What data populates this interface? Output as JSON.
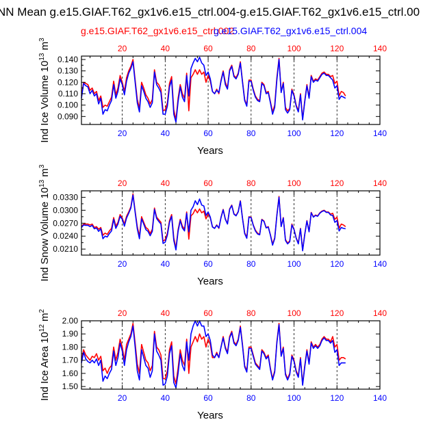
{
  "title": "NN Mean g.e15.GIAF.T62_gx1v6.e15_ctrl.004-g.e15.GIAF.T62_gx1v6.e15_ctrl.00",
  "legend": {
    "red": "g.e15.GIAF.T62_gx1v6.e15_ctrl.002",
    "blue": "g.e15.GIAF.T62_gx1v6.e15_ctrl.004"
  },
  "colors": {
    "red": "#ff0000",
    "blue": "#0000ff",
    "axis": "#000000",
    "grid": "#000000"
  },
  "chart_data": [
    {
      "type": "line",
      "ylabel": "Ind Ice Volume 10^13 m^3",
      "ylabel_main": "Ind Ice Volume 10",
      "ylabel_exp": "13",
      "ylabel_unit": " m",
      "ylabel_unit_exp": "3",
      "xlabel": "Years",
      "xlim": [
        1,
        140
      ],
      "ylim": [
        0.083,
        0.143
      ],
      "yticks": [
        0.09,
        0.1,
        0.11,
        0.12,
        0.13,
        0.14
      ],
      "ytick_labels": [
        "0.090",
        "0.100",
        "0.110",
        "0.120",
        "0.130",
        "0.140"
      ],
      "xticks": [
        20,
        40,
        60,
        80,
        100,
        120,
        140
      ],
      "xtick_labels": [
        "20",
        "40",
        "60",
        "80",
        "100",
        "120",
        "140"
      ],
      "grid_x": [
        20,
        40,
        60,
        80,
        100,
        120
      ],
      "series": [
        {
          "name": "g.e15.GIAF.T62_gx1v6.e15_ctrl.002",
          "color": "#ff0000",
          "values": [
            0.108,
            0.12,
            0.119,
            0.118,
            0.113,
            0.115,
            0.11,
            0.112,
            0.104,
            0.108,
            0.098,
            0.1,
            0.099,
            0.103,
            0.107,
            0.121,
            0.109,
            0.115,
            0.126,
            0.12,
            0.112,
            0.124,
            0.13,
            0.134,
            0.14,
            0.122,
            0.105,
            0.097,
            0.12,
            0.115,
            0.109,
            0.106,
            0.101,
            0.105,
            0.131,
            0.12,
            0.118,
            0.114,
            0.095,
            0.096,
            0.102,
            0.119,
            0.125,
            0.096,
            0.087,
            0.106,
            0.118,
            0.11,
            0.106,
            0.128,
            0.095,
            0.124,
            0.127,
            0.131,
            0.127,
            0.131,
            0.127,
            0.129,
            0.12,
            0.126,
            0.121,
            0.112,
            0.11,
            0.114,
            0.11,
            0.122,
            0.13,
            0.12,
            0.115,
            0.131,
            0.135,
            0.126,
            0.124,
            0.128,
            0.138,
            0.121,
            0.105,
            0.1,
            0.122,
            0.122,
            0.114,
            0.108,
            0.105,
            0.104,
            0.12,
            0.118,
            0.111,
            0.112,
            0.103,
            0.094,
            0.1,
            0.124,
            0.141,
            0.112,
            0.12,
            0.098,
            0.095,
            0.097,
            0.114,
            0.109,
            0.1,
            0.095,
            0.11,
            0.088,
            0.104,
            0.118,
            0.107,
            0.126,
            0.121,
            0.123,
            0.122,
            0.125,
            0.128,
            0.129,
            0.127,
            0.127,
            0.125,
            0.126,
            0.119,
            0.121,
            0.108,
            0.112,
            0.111,
            0.108
          ]
        },
        {
          "name": "g.e15.GIAF.T62_gx1v6.e15_ctrl.004",
          "color": "#0000ff",
          "values": [
            0.106,
            0.119,
            0.117,
            0.116,
            0.11,
            0.113,
            0.108,
            0.11,
            0.101,
            0.106,
            0.092,
            0.096,
            0.095,
            0.1,
            0.104,
            0.118,
            0.106,
            0.112,
            0.123,
            0.118,
            0.109,
            0.121,
            0.128,
            0.132,
            0.138,
            0.12,
            0.102,
            0.094,
            0.117,
            0.112,
            0.106,
            0.103,
            0.098,
            0.102,
            0.129,
            0.118,
            0.115,
            0.111,
            0.092,
            0.092,
            0.099,
            0.116,
            0.122,
            0.092,
            0.085,
            0.103,
            0.116,
            0.107,
            0.103,
            0.126,
            0.108,
            0.132,
            0.137,
            0.141,
            0.138,
            0.142,
            0.137,
            0.135,
            0.126,
            0.129,
            0.123,
            0.112,
            0.11,
            0.113,
            0.111,
            0.121,
            0.129,
            0.118,
            0.114,
            0.13,
            0.134,
            0.125,
            0.123,
            0.127,
            0.137,
            0.12,
            0.104,
            0.099,
            0.121,
            0.121,
            0.113,
            0.107,
            0.104,
            0.103,
            0.119,
            0.117,
            0.11,
            0.111,
            0.102,
            0.092,
            0.098,
            0.122,
            0.14,
            0.111,
            0.119,
            0.096,
            0.093,
            0.096,
            0.113,
            0.108,
            0.099,
            0.094,
            0.109,
            0.087,
            0.103,
            0.117,
            0.106,
            0.125,
            0.12,
            0.122,
            0.121,
            0.124,
            0.127,
            0.128,
            0.126,
            0.126,
            0.124,
            0.122,
            0.115,
            0.117,
            0.105,
            0.108,
            0.107,
            0.106
          ]
        }
      ]
    },
    {
      "type": "line",
      "ylabel": "Ind Snow Volume 10^13 m^3",
      "ylabel_main": "Ind Snow Volume 10",
      "ylabel_exp": "13",
      "ylabel_unit": " m",
      "ylabel_unit_exp": "3",
      "xlabel": "Years",
      "xlim": [
        1,
        140
      ],
      "ylim": [
        0.0196,
        0.0345
      ],
      "yticks": [
        0.021,
        0.024,
        0.027,
        0.03,
        0.033
      ],
      "ytick_labels": [
        "0.0210",
        "0.0240",
        "0.0270",
        "0.0300",
        "0.0330"
      ],
      "xticks": [
        20,
        40,
        60,
        80,
        100,
        120,
        140
      ],
      "xtick_labels": [
        "20",
        "40",
        "60",
        "80",
        "100",
        "120",
        "140"
      ],
      "grid_x": [
        20,
        40,
        60,
        80,
        100,
        120
      ],
      "series": [
        {
          "name": "g.e15.GIAF.T62_gx1v6.e15_ctrl.002",
          "color": "#ff0000",
          "values": [
            0.0262,
            0.0268,
            0.0268,
            0.0268,
            0.0266,
            0.0268,
            0.026,
            0.0262,
            0.0256,
            0.026,
            0.0242,
            0.0247,
            0.0244,
            0.0252,
            0.0258,
            0.0283,
            0.0263,
            0.0272,
            0.029,
            0.0282,
            0.0268,
            0.0286,
            0.0296,
            0.0308,
            0.0338,
            0.0298,
            0.0262,
            0.024,
            0.0285,
            0.0272,
            0.026,
            0.0256,
            0.0246,
            0.0256,
            0.0305,
            0.0284,
            0.0278,
            0.0272,
            0.0228,
            0.0232,
            0.0247,
            0.0276,
            0.029,
            0.0236,
            0.0212,
            0.0255,
            0.0279,
            0.0263,
            0.0256,
            0.0296,
            0.0233,
            0.0287,
            0.0292,
            0.0302,
            0.0294,
            0.0303,
            0.0294,
            0.0298,
            0.028,
            0.0292,
            0.0282,
            0.0262,
            0.0258,
            0.0266,
            0.0258,
            0.0284,
            0.0302,
            0.028,
            0.0269,
            0.0303,
            0.0312,
            0.0292,
            0.0288,
            0.0297,
            0.0322,
            0.0282,
            0.0248,
            0.0237,
            0.0285,
            0.0284,
            0.0266,
            0.0254,
            0.0247,
            0.0244,
            0.0279,
            0.0275,
            0.026,
            0.0262,
            0.0243,
            0.0222,
            0.0236,
            0.0289,
            0.0332,
            0.0263,
            0.0283,
            0.0232,
            0.0224,
            0.0229,
            0.0268,
            0.0256,
            0.0236,
            0.0224,
            0.0258,
            0.0208,
            0.0245,
            0.0276,
            0.0251,
            0.0295,
            0.0285,
            0.0289,
            0.0287,
            0.0294,
            0.0298,
            0.03,
            0.0296,
            0.0296,
            0.0291,
            0.0293,
            0.0279,
            0.0284,
            0.0258,
            0.0268,
            0.0266,
            0.0262
          ]
        },
        {
          "name": "g.e15.GIAF.T62_gx1v6.e15_ctrl.004",
          "color": "#0000ff",
          "values": [
            0.026,
            0.0266,
            0.0265,
            0.0265,
            0.0262,
            0.0265,
            0.0257,
            0.0259,
            0.0251,
            0.0257,
            0.0234,
            0.024,
            0.0238,
            0.0246,
            0.0252,
            0.0279,
            0.0258,
            0.0268,
            0.0286,
            0.0279,
            0.0263,
            0.0282,
            0.0293,
            0.0305,
            0.0335,
            0.0295,
            0.0257,
            0.0234,
            0.028,
            0.0268,
            0.0255,
            0.0251,
            0.0241,
            0.0251,
            0.0302,
            0.0281,
            0.0274,
            0.0268,
            0.0223,
            0.0226,
            0.0242,
            0.0272,
            0.0286,
            0.023,
            0.0208,
            0.0251,
            0.0276,
            0.0259,
            0.0252,
            0.0293,
            0.025,
            0.03,
            0.0308,
            0.0322,
            0.0313,
            0.0326,
            0.0312,
            0.031,
            0.0288,
            0.0296,
            0.0284,
            0.0261,
            0.0258,
            0.0265,
            0.0259,
            0.0283,
            0.0301,
            0.0279,
            0.0268,
            0.0302,
            0.0311,
            0.0291,
            0.0287,
            0.0296,
            0.0321,
            0.0281,
            0.0246,
            0.0235,
            0.0284,
            0.0283,
            0.0265,
            0.0252,
            0.0245,
            0.0243,
            0.0278,
            0.0274,
            0.0259,
            0.0261,
            0.0242,
            0.0219,
            0.0234,
            0.0287,
            0.033,
            0.0262,
            0.0282,
            0.023,
            0.0222,
            0.0227,
            0.0266,
            0.0255,
            0.0235,
            0.0222,
            0.0257,
            0.0206,
            0.0244,
            0.0275,
            0.025,
            0.0294,
            0.0284,
            0.0288,
            0.0286,
            0.0293,
            0.0297,
            0.0299,
            0.0295,
            0.0295,
            0.0289,
            0.0288,
            0.0272,
            0.0276,
            0.0252,
            0.026,
            0.0258,
            0.0257
          ]
        }
      ]
    },
    {
      "type": "line",
      "ylabel": "Ind Ice Area 10^12 m^2",
      "ylabel_main": "Ind Ice Area 10",
      "ylabel_exp": "12",
      "ylabel_unit": " m",
      "ylabel_unit_exp": "2",
      "xlabel": "Years",
      "xlim": [
        1,
        140
      ],
      "ylim": [
        1.48,
        2.0
      ],
      "yticks": [
        1.5,
        1.6,
        1.7,
        1.8,
        1.9,
        2.0
      ],
      "ytick_labels": [
        "1.50",
        "1.60",
        "1.70",
        "1.80",
        "1.90",
        "2.00"
      ],
      "xticks": [
        20,
        40,
        60,
        80,
        100,
        120,
        140
      ],
      "xtick_labels": [
        "20",
        "40",
        "60",
        "80",
        "100",
        "120",
        "140"
      ],
      "grid_x": [
        20,
        40,
        60,
        80,
        100,
        120
      ],
      "series": [
        {
          "name": "g.e15.GIAF.T62_gx1v6.e15_ctrl.002",
          "color": "#ff0000",
          "values": [
            1.7,
            1.78,
            1.74,
            1.72,
            1.7,
            1.73,
            1.72,
            1.75,
            1.7,
            1.73,
            1.62,
            1.64,
            1.6,
            1.64,
            1.66,
            1.8,
            1.7,
            1.76,
            1.86,
            1.8,
            1.7,
            1.82,
            1.86,
            1.9,
            1.98,
            1.83,
            1.67,
            1.6,
            1.82,
            1.76,
            1.7,
            1.68,
            1.62,
            1.66,
            1.92,
            1.8,
            1.78,
            1.74,
            1.56,
            1.56,
            1.62,
            1.78,
            1.84,
            1.58,
            1.52,
            1.64,
            1.78,
            1.7,
            1.66,
            1.86,
            1.6,
            1.8,
            1.84,
            1.88,
            1.84,
            1.9,
            1.86,
            1.88,
            1.8,
            1.86,
            1.82,
            1.72,
            1.72,
            1.76,
            1.72,
            1.8,
            1.88,
            1.8,
            1.76,
            1.88,
            1.92,
            1.84,
            1.82,
            1.86,
            1.96,
            1.82,
            1.66,
            1.62,
            1.8,
            1.8,
            1.74,
            1.68,
            1.66,
            1.64,
            1.78,
            1.76,
            1.72,
            1.74,
            1.64,
            1.56,
            1.62,
            1.84,
            1.98,
            1.74,
            1.8,
            1.6,
            1.56,
            1.6,
            1.74,
            1.7,
            1.62,
            1.58,
            1.72,
            1.52,
            1.66,
            1.78,
            1.68,
            1.84,
            1.8,
            1.82,
            1.8,
            1.82,
            1.86,
            1.88,
            1.86,
            1.86,
            1.84,
            1.88,
            1.8,
            1.82,
            1.7,
            1.72,
            1.72,
            1.71
          ]
        },
        {
          "name": "g.e15.GIAF.T62_gx1v6.e15_ctrl.004",
          "color": "#0000ff",
          "values": [
            1.68,
            1.76,
            1.71,
            1.69,
            1.68,
            1.7,
            1.68,
            1.71,
            1.66,
            1.7,
            1.54,
            1.58,
            1.56,
            1.6,
            1.63,
            1.77,
            1.66,
            1.72,
            1.83,
            1.77,
            1.66,
            1.78,
            1.84,
            1.88,
            1.96,
            1.8,
            1.62,
            1.55,
            1.78,
            1.72,
            1.66,
            1.64,
            1.57,
            1.62,
            1.9,
            1.77,
            1.74,
            1.7,
            1.51,
            1.52,
            1.58,
            1.75,
            1.81,
            1.53,
            1.49,
            1.6,
            1.75,
            1.66,
            1.62,
            1.84,
            1.7,
            1.9,
            1.96,
            2.0,
            1.96,
            2.0,
            1.96,
            1.96,
            1.88,
            1.9,
            1.85,
            1.74,
            1.72,
            1.75,
            1.72,
            1.8,
            1.87,
            1.79,
            1.75,
            1.87,
            1.91,
            1.83,
            1.81,
            1.85,
            1.95,
            1.81,
            1.65,
            1.61,
            1.79,
            1.79,
            1.73,
            1.67,
            1.65,
            1.63,
            1.77,
            1.75,
            1.71,
            1.73,
            1.63,
            1.55,
            1.61,
            1.83,
            1.97,
            1.73,
            1.79,
            1.59,
            1.55,
            1.59,
            1.73,
            1.69,
            1.61,
            1.57,
            1.71,
            1.51,
            1.65,
            1.77,
            1.67,
            1.83,
            1.79,
            1.81,
            1.79,
            1.81,
            1.85,
            1.87,
            1.85,
            1.85,
            1.83,
            1.85,
            1.76,
            1.78,
            1.66,
            1.68,
            1.68,
            1.68
          ]
        }
      ]
    }
  ]
}
